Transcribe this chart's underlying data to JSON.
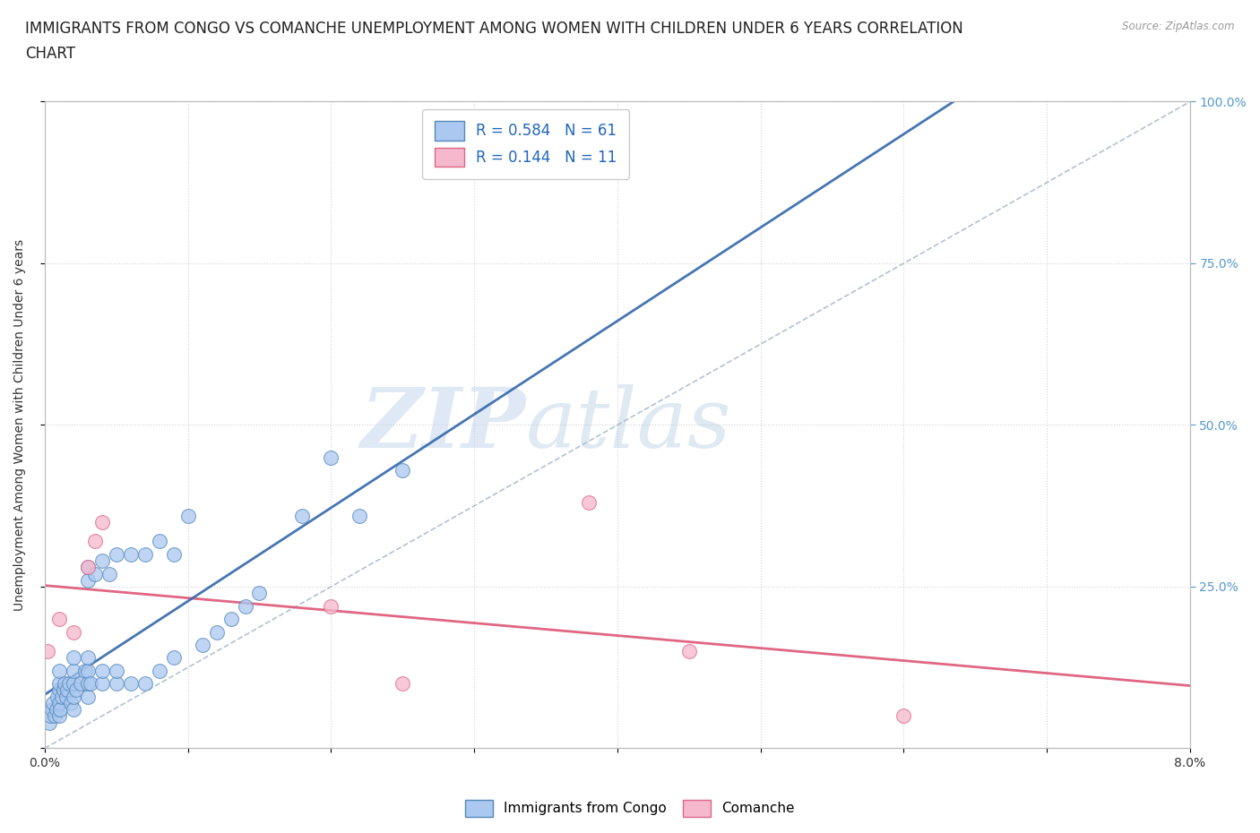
{
  "title_line1": "IMMIGRANTS FROM CONGO VS COMANCHE UNEMPLOYMENT AMONG WOMEN WITH CHILDREN UNDER 6 YEARS CORRELATION",
  "title_line2": "CHART",
  "source_text": "Source: ZipAtlas.com",
  "ylabel": "Unemployment Among Women with Children Under 6 years",
  "xlim": [
    0.0,
    0.08
  ],
  "ylim": [
    0.0,
    1.0
  ],
  "legend_r1": "R = 0.584",
  "legend_n1": "N = 61",
  "legend_r2": "R = 0.144",
  "legend_n2": "N = 11",
  "watermark_zip": "ZIP",
  "watermark_atlas": "atlas",
  "congo_color": "#aac8f0",
  "congo_edge_color": "#5588bb",
  "comanche_color": "#f5b8cc",
  "comanche_edge_color": "#dd6688",
  "trendline_congo_color": "#3366aa",
  "trendline_comanche_color": "#dd5577",
  "diag_line_color": "#aabbcc",
  "grid_color": "#cccccc",
  "background_color": "#ffffff",
  "title_fontsize": 12,
  "axis_label_fontsize": 10,
  "tick_fontsize": 10,
  "right_tick_color": "#5599cc",
  "legend_color": "#2266bb",
  "congo_x": [
    0.0003,
    0.0004,
    0.0005,
    0.0006,
    0.0007,
    0.0008,
    0.0009,
    0.001,
    0.001,
    0.001,
    0.001,
    0.001,
    0.0011,
    0.0012,
    0.0013,
    0.0014,
    0.0015,
    0.0016,
    0.0017,
    0.0018,
    0.002,
    0.002,
    0.002,
    0.002,
    0.002,
    0.0022,
    0.0025,
    0.0028,
    0.003,
    0.003,
    0.003,
    0.003,
    0.003,
    0.003,
    0.0032,
    0.0035,
    0.004,
    0.004,
    0.004,
    0.0045,
    0.005,
    0.005,
    0.005,
    0.006,
    0.006,
    0.007,
    0.007,
    0.008,
    0.008,
    0.009,
    0.009,
    0.01,
    0.011,
    0.012,
    0.013,
    0.014,
    0.015,
    0.018,
    0.02,
    0.022,
    0.025
  ],
  "congo_y": [
    0.04,
    0.05,
    0.06,
    0.07,
    0.05,
    0.06,
    0.08,
    0.05,
    0.07,
    0.09,
    0.1,
    0.12,
    0.06,
    0.08,
    0.09,
    0.1,
    0.08,
    0.09,
    0.1,
    0.07,
    0.06,
    0.08,
    0.1,
    0.12,
    0.14,
    0.09,
    0.1,
    0.12,
    0.08,
    0.1,
    0.12,
    0.14,
    0.26,
    0.28,
    0.1,
    0.27,
    0.1,
    0.12,
    0.29,
    0.27,
    0.1,
    0.12,
    0.3,
    0.1,
    0.3,
    0.1,
    0.3,
    0.12,
    0.32,
    0.14,
    0.3,
    0.36,
    0.16,
    0.18,
    0.2,
    0.22,
    0.24,
    0.36,
    0.45,
    0.36,
    0.43
  ],
  "comanche_x": [
    0.0002,
    0.001,
    0.002,
    0.003,
    0.0035,
    0.004,
    0.02,
    0.025,
    0.038,
    0.045,
    0.06
  ],
  "comanche_y": [
    0.15,
    0.2,
    0.18,
    0.28,
    0.32,
    0.35,
    0.22,
    0.1,
    0.38,
    0.15,
    0.05
  ]
}
